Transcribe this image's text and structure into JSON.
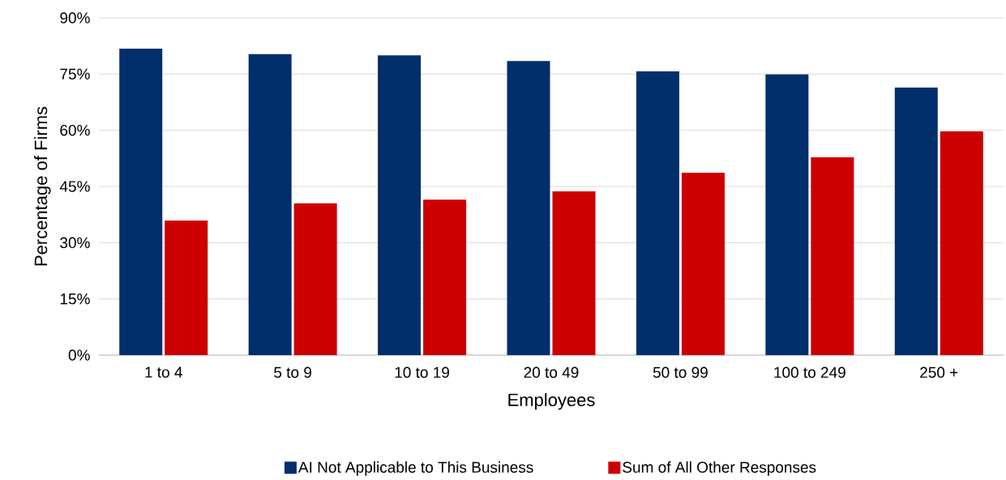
{
  "chart_data": {
    "type": "bar",
    "xlabel": "Employees",
    "ylabel": "Percentage of Firms",
    "categories": [
      "1 to 4",
      "5 to 9",
      "10 to 19",
      "20 to 49",
      "50 to 99",
      "100 to 249",
      "250 +"
    ],
    "series": [
      {
        "name": "AI Not Applicable to This Business",
        "color": "#002f6c",
        "values": [
          81.8,
          80.3,
          80.0,
          78.5,
          75.7,
          74.9,
          71.4
        ]
      },
      {
        "name": "Sum of All Other Responses",
        "color": "#cc0000",
        "values": [
          35.9,
          40.5,
          41.5,
          43.7,
          48.7,
          52.8,
          59.7
        ]
      }
    ],
    "ylim": [
      0,
      90
    ],
    "yticks": [
      {
        "value": 0,
        "label": "0%"
      },
      {
        "value": 15,
        "label": "15%"
      },
      {
        "value": 30,
        "label": "30%"
      },
      {
        "value": 45,
        "label": "45%"
      },
      {
        "value": 60,
        "label": "60%"
      },
      {
        "value": 75,
        "label": "75%"
      },
      {
        "value": 90,
        "label": "90%"
      }
    ],
    "grid": "y",
    "legend": "bottom"
  }
}
